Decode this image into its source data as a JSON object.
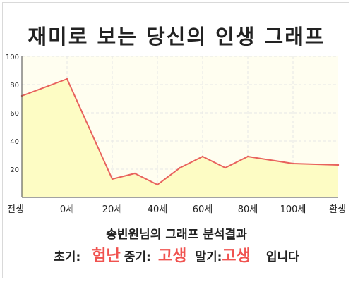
{
  "title": "재미로 보는 당신의 인생 그래프",
  "subtitle": "송빈원님의 그래프 분석결과",
  "summary": {
    "early_label": "초기:",
    "early_value": "험난",
    "mid_label": "중기:",
    "mid_value": "고생",
    "late_label": "말기:",
    "late_value": "고생",
    "ending": "입니다"
  },
  "colors": {
    "line": "#e8625d",
    "fill": "#fdfcc4",
    "plot_background": "#fffef0",
    "grid": "#e6e6e6",
    "highlight_text": "#f0524f"
  },
  "chart_data": {
    "type": "area",
    "title": "재미로 보는 당신의 인생 그래프",
    "xlabel": "",
    "ylabel": "",
    "x_tick_labels": [
      "전생",
      "0세",
      "20세",
      "40세",
      "60세",
      "80세",
      "100세",
      "환생"
    ],
    "yticks": [
      20,
      40,
      60,
      80,
      100
    ],
    "ylim": [
      0,
      100
    ],
    "grid": true,
    "legend": "none",
    "series": [
      {
        "points": [
          {
            "x": -20,
            "y": 72
          },
          {
            "x": 0,
            "y": 84
          },
          {
            "x": 20,
            "y": 13
          },
          {
            "x": 30,
            "y": 17
          },
          {
            "x": 40,
            "y": 9
          },
          {
            "x": 50,
            "y": 21
          },
          {
            "x": 60,
            "y": 29
          },
          {
            "x": 70,
            "y": 21
          },
          {
            "x": 80,
            "y": 29
          },
          {
            "x": 100,
            "y": 24
          },
          {
            "x": 120,
            "y": 23
          }
        ]
      }
    ]
  }
}
